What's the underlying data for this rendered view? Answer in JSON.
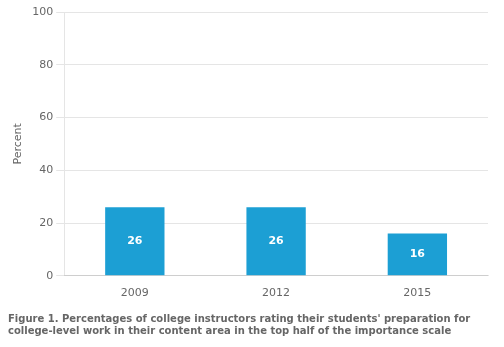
{
  "chart_data": {
    "type": "bar",
    "categories": [
      "2009",
      "2012",
      "2015"
    ],
    "values": [
      26,
      26,
      16
    ],
    "color": "#1c9fd4",
    "ylabel": "Percent",
    "ylim": [
      0,
      100
    ],
    "yticks": [
      0,
      20,
      40,
      60,
      80,
      100
    ],
    "grid": true,
    "data_labels": true,
    "annotations": [
      "Figure 1. Percentages of college instructors rating their students' preparation for",
      "college-level work in their content area in the top half of the importance scale"
    ]
  }
}
